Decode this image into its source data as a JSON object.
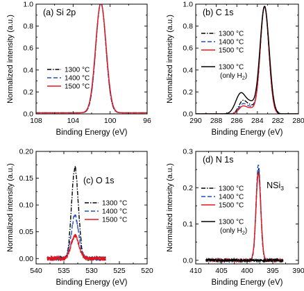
{
  "chart_data": [
    {
      "id": "a",
      "type": "line",
      "panel_label": "(a) Si 2p",
      "xlabel": "Binding Energy (eV)",
      "ylabel": "Normalized intensity (a.u.)",
      "xlim": [
        108,
        96
      ],
      "ylim": [
        0,
        1.0
      ],
      "xticks": [
        108,
        104,
        100,
        96
      ],
      "xtick_labels": [
        "108",
        "104",
        "100",
        "96"
      ],
      "yticks": [
        0,
        0.2,
        0.4,
        0.6,
        0.8,
        1.0
      ],
      "ytick_labels": [
        "0.0",
        "0.2",
        "0.4",
        "0.6",
        "0.8",
        "1.0"
      ],
      "legend_position": "lower-left",
      "series": [
        {
          "name": "1300 °C",
          "color": "#000000",
          "dash": "dashdot",
          "peaks": [
            {
              "center": 101.0,
              "height": 1.0,
              "width": 0.55
            }
          ],
          "baseline": 0.01,
          "noise": 0.0
        },
        {
          "name": "1400 °C",
          "color": "#1f4fbf",
          "dash": "dash",
          "peaks": [
            {
              "center": 101.0,
              "height": 1.0,
              "width": 0.55
            }
          ],
          "baseline": 0.01,
          "noise": 0.0
        },
        {
          "name": "1500 °C",
          "color": "#e8141c",
          "dash": "solid",
          "peaks": [
            {
              "center": 101.0,
              "height": 1.0,
              "width": 0.57
            }
          ],
          "baseline": 0.01,
          "noise": 0.0
        }
      ]
    },
    {
      "id": "b",
      "type": "line",
      "panel_label": "(b) C 1s",
      "xlabel": "Binding Energy (eV)",
      "ylabel": "Normalized intensity (a.u.)",
      "xlim": [
        290,
        280
      ],
      "ylim": [
        0,
        1.0
      ],
      "xticks": [
        290,
        288,
        286,
        284,
        282,
        280
      ],
      "xtick_labels": [
        "290",
        "288",
        "286",
        "284",
        "282",
        "280"
      ],
      "yticks": [
        0,
        0.2,
        0.4,
        0.6,
        0.8,
        1.0
      ],
      "ytick_labels": [
        "0.0",
        "0.2",
        "0.4",
        "0.6",
        "0.8",
        "1.0"
      ],
      "legend_position": "left",
      "legend_extra": {
        "line1": "1300 °C",
        "line2_prefix": "(only H",
        "line2_sub": "2",
        "line2_suffix": ")"
      },
      "series": [
        {
          "name": "1300 °C",
          "color": "#000000",
          "dash": "dashdot",
          "peaks": [
            {
              "center": 283.3,
              "height": 0.98,
              "width": 0.42
            },
            {
              "center": 285.4,
              "height": 0.12,
              "width": 0.4
            },
            {
              "center": 284.6,
              "height": 0.06,
              "width": 0.35
            }
          ],
          "baseline": 0.0,
          "noise": 0.0
        },
        {
          "name": "1400 °C",
          "color": "#1f4fbf",
          "dash": "dash",
          "peaks": [
            {
              "center": 283.3,
              "height": 0.98,
              "width": 0.42
            },
            {
              "center": 285.4,
              "height": 0.09,
              "width": 0.4
            },
            {
              "center": 284.6,
              "height": 0.05,
              "width": 0.35
            }
          ],
          "baseline": 0.0,
          "noise": 0.0
        },
        {
          "name": "1500 °C",
          "color": "#e8141c",
          "dash": "solid",
          "peaks": [
            {
              "center": 283.3,
              "height": 0.98,
              "width": 0.42
            },
            {
              "center": 285.4,
              "height": 0.07,
              "width": 0.4
            },
            {
              "center": 284.6,
              "height": 0.04,
              "width": 0.35
            }
          ],
          "baseline": 0.0,
          "noise": 0.0
        },
        {
          "name": "1300 °C (only H2)",
          "color": "#000000",
          "dash": "solid",
          "peaks": [
            {
              "center": 283.3,
              "height": 0.98,
              "width": 0.45
            },
            {
              "center": 285.6,
              "height": 0.19,
              "width": 0.5
            },
            {
              "center": 284.6,
              "height": 0.08,
              "width": 0.4
            }
          ],
          "baseline": 0.0,
          "noise": 0.0
        }
      ]
    },
    {
      "id": "c",
      "type": "line",
      "panel_label": "(c) O 1s",
      "xlabel": "Binding Energy (eV)",
      "ylabel": "Normalized intensity (a.u.)",
      "xlim": [
        540,
        520
      ],
      "ylim": [
        -0.01,
        0.2
      ],
      "xticks": [
        540,
        535,
        530,
        525,
        520
      ],
      "xtick_labels": [
        "540",
        "535",
        "530",
        "525",
        "520"
      ],
      "yticks": [
        0,
        0.05,
        0.1,
        0.15,
        0.2
      ],
      "ytick_labels": [
        "0.00",
        "0.05",
        "0.10",
        "0.15",
        "0.20"
      ],
      "legend_position": "right",
      "series": [
        {
          "name": "1300 °C",
          "color": "#000000",
          "dash": "dashdot",
          "range": [
            538,
            527.5
          ],
          "peaks": [
            {
              "center": 533.0,
              "height": 0.17,
              "width": 0.6
            }
          ],
          "baseline": 0.0,
          "noise": 0.004
        },
        {
          "name": "1400 °C",
          "color": "#1f4fbf",
          "dash": "dash",
          "range": [
            538,
            527.5
          ],
          "peaks": [
            {
              "center": 533.0,
              "height": 0.08,
              "width": 0.65
            }
          ],
          "baseline": 0.0,
          "noise": 0.004
        },
        {
          "name": "1500 °C",
          "color": "#e8141c",
          "dash": "solid",
          "range": [
            538,
            527.5
          ],
          "peaks": [
            {
              "center": 533.0,
              "height": 0.042,
              "width": 0.7
            }
          ],
          "baseline": 0.0,
          "noise": 0.004
        }
      ]
    },
    {
      "id": "d",
      "type": "line",
      "panel_label": "(d) N 1s",
      "annotation_main": "NSi",
      "annotation_sub": "3",
      "xlabel": "Binding Energy (eV)",
      "ylabel": "Normalized intensity (a.u.)",
      "xlim": [
        410,
        390
      ],
      "ylim": [
        -0.01,
        0.3
      ],
      "xticks": [
        410,
        405,
        400,
        395,
        390
      ],
      "xtick_labels": [
        "410",
        "405",
        "400",
        "395",
        "390"
      ],
      "yticks": [
        0,
        0.1,
        0.2,
        0.3
      ],
      "ytick_labels": [
        "0.0",
        "0.1",
        "0.2",
        "0.3"
      ],
      "legend_position": "left",
      "legend_extra": {
        "line1": "1300 °C",
        "line2_prefix": "(only H",
        "line2_sub": "2",
        "line2_suffix": ")"
      },
      "series": [
        {
          "name": "1300 °C",
          "color": "#000000",
          "dash": "dashdot",
          "range": [
            408,
            393
          ],
          "peaks": [
            {
              "center": 397.8,
              "height": 0.25,
              "width": 0.45
            }
          ],
          "baseline": 0.0,
          "noise": 0.003
        },
        {
          "name": "1400 °C",
          "color": "#1f4fbf",
          "dash": "dash",
          "range": [
            408,
            393
          ],
          "peaks": [
            {
              "center": 397.8,
              "height": 0.262,
              "width": 0.45
            }
          ],
          "baseline": 0.0,
          "noise": 0.003
        },
        {
          "name": "1500 °C",
          "color": "#e8141c",
          "dash": "solid",
          "range": [
            408,
            393
          ],
          "peaks": [
            {
              "center": 397.8,
              "height": 0.24,
              "width": 0.47
            }
          ],
          "baseline": 0.0,
          "noise": 0.003
        },
        {
          "name": "1300 °C (only H2)",
          "color": "#000000",
          "dash": "solid",
          "range": [
            408,
            393
          ],
          "peaks": [],
          "baseline": 0.0,
          "noise": 0.004
        }
      ]
    }
  ]
}
